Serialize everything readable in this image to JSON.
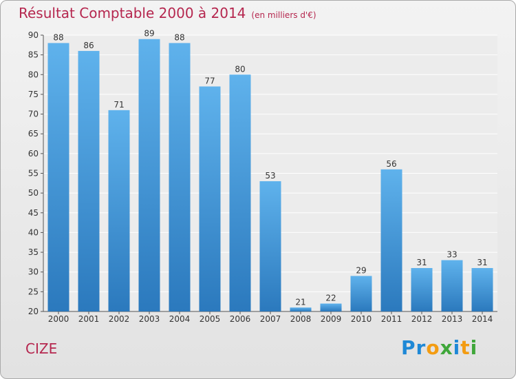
{
  "header": {
    "title": "Résultat Comptable 2000 à 2014",
    "unit": "(en milliers d'€)"
  },
  "footer": {
    "commune": "CIZE",
    "logo_text": "Proxiti"
  },
  "colors": {
    "title": "#b5264e",
    "bar_light": "#5fb2ec",
    "bar_dark": "#2b79bd"
  },
  "chart_data": {
    "type": "bar",
    "title": "Résultat Comptable 2000 à 2014",
    "subtitle": "(en milliers d'€)",
    "xlabel": "",
    "ylabel": "",
    "categories": [
      "2000",
      "2001",
      "2002",
      "2003",
      "2004",
      "2005",
      "2006",
      "2007",
      "2008",
      "2009",
      "2010",
      "2011",
      "2012",
      "2013",
      "2014"
    ],
    "values": [
      88,
      86,
      71,
      89,
      88,
      77,
      80,
      53,
      21,
      22,
      29,
      56,
      31,
      33,
      31
    ],
    "ylim": [
      20,
      90
    ],
    "yticks": [
      20,
      25,
      30,
      35,
      40,
      45,
      50,
      55,
      60,
      65,
      70,
      75,
      80,
      85,
      90
    ],
    "grid": true
  }
}
